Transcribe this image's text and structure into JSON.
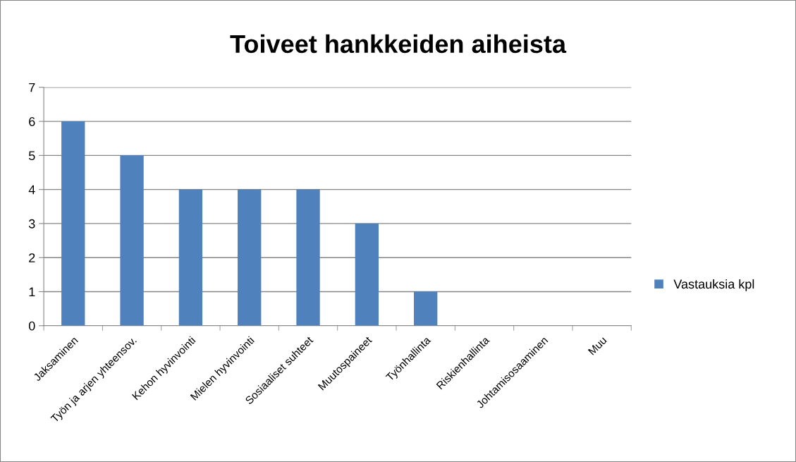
{
  "chart_data": {
    "type": "bar",
    "title": "Toiveet hankkeiden aiheista",
    "categories": [
      "Jaksaminen",
      "Työn ja arjen yhteensov.",
      "Kehon hyvinvointi",
      "Mielen hyvinvointi",
      "Sosiaaliset suhteet",
      "Muutospaineet",
      "Työnhallinta",
      "Riskienhallinta",
      "Johtamisosaaminen",
      "Muu"
    ],
    "series": [
      {
        "name": "Vastauksia kpl",
        "color": "#4f81bd",
        "values": [
          6,
          5,
          4,
          4,
          4,
          3,
          1,
          0,
          0,
          0
        ]
      }
    ],
    "ylim": [
      0,
      7
    ],
    "yticks": [
      0,
      1,
      2,
      3,
      4,
      5,
      6,
      7
    ],
    "grid": "y",
    "legend": "right"
  }
}
